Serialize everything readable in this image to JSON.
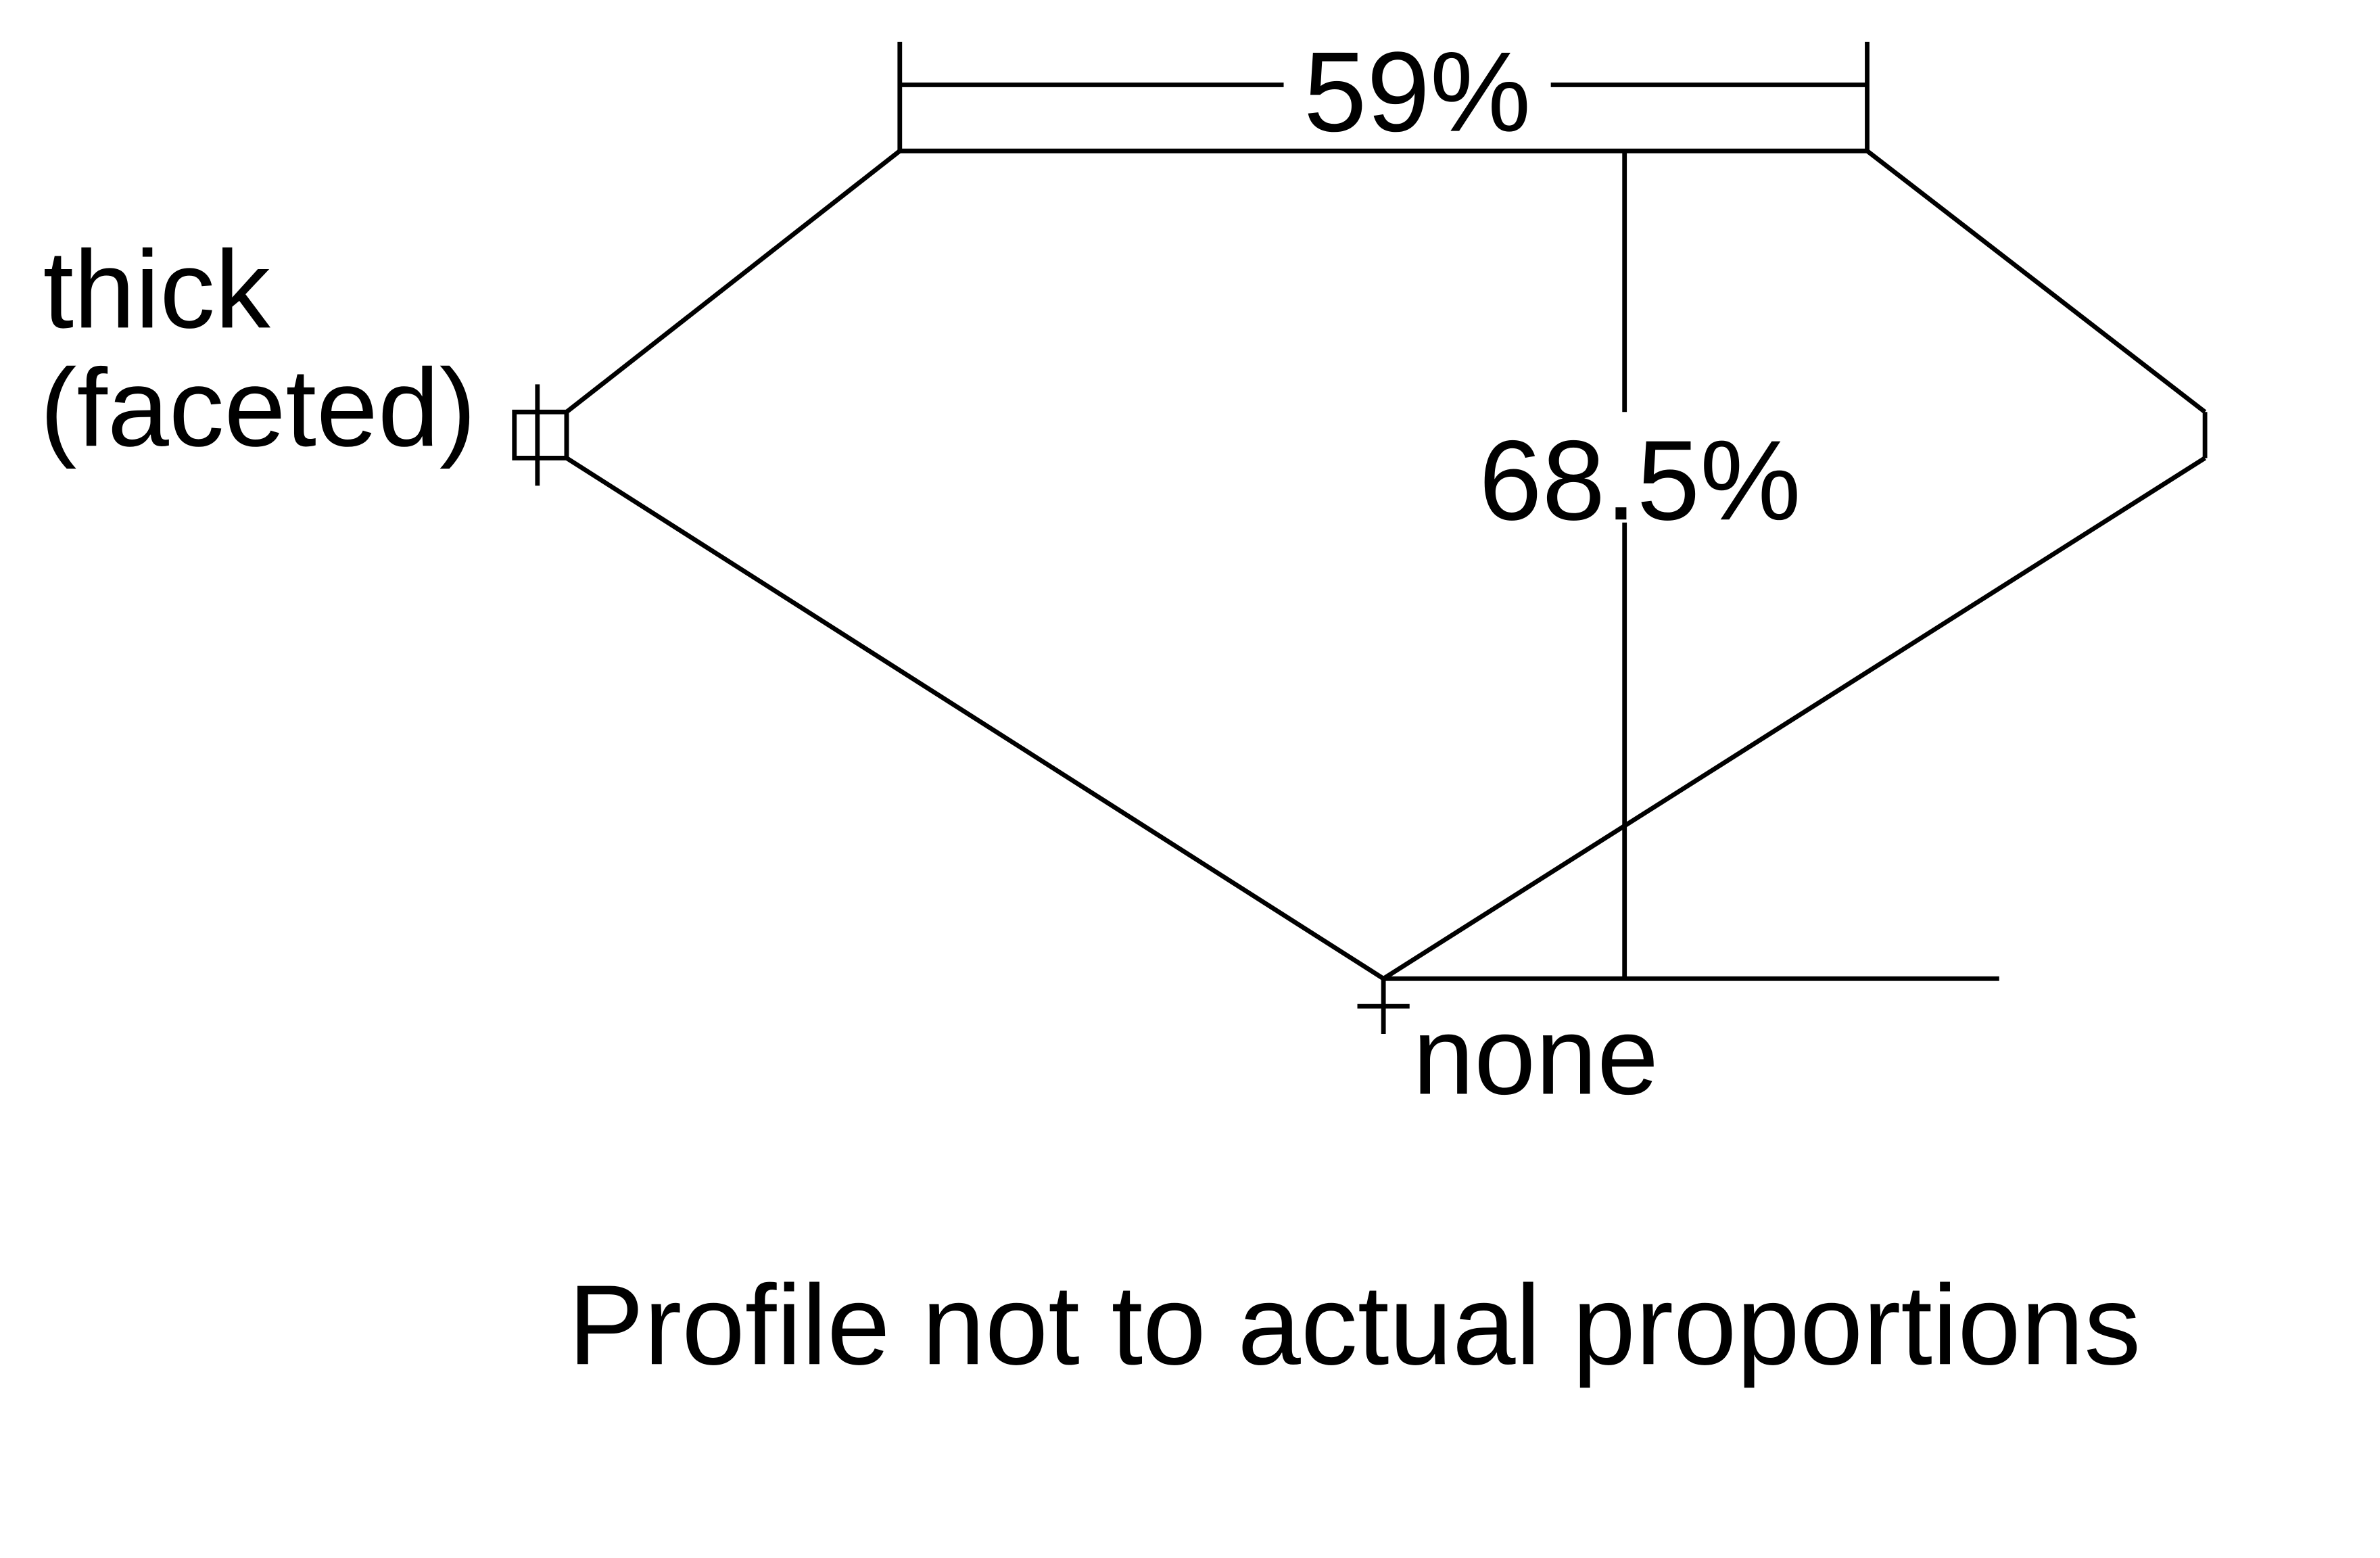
{
  "labels": {
    "table_width": "59%",
    "total_depth": "68.5%",
    "girdle_line1": "thick",
    "girdle_line2": "(faceted)",
    "culet": "none",
    "note": "Profile not to actual proportions"
  },
  "colors": {
    "line": "#000000",
    "background": "#ffffff"
  }
}
